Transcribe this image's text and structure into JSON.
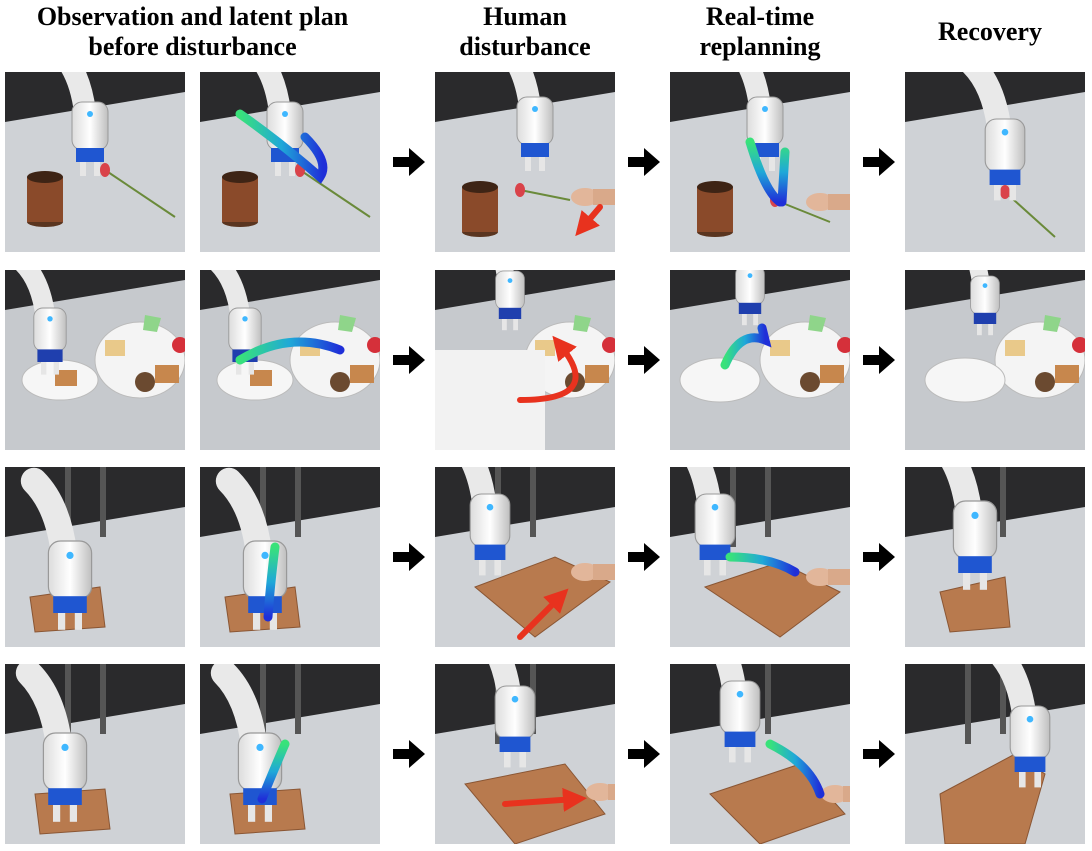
{
  "headers": {
    "col1": [
      "Observation and latent plan",
      "before disturbance"
    ],
    "col3": [
      "Human",
      "disturbance"
    ],
    "col4": [
      "Real-time",
      "replanning"
    ],
    "col5": [
      "Recovery"
    ]
  },
  "colors": {
    "plan_start": "#39e27a",
    "plan_end": "#1f2fd8",
    "disturbance_arrow": "#e8321e",
    "table": "#c9ccd0",
    "backdrop": "#2a2a2c"
  },
  "rows": [
    {
      "scene": "tulip-and-cup"
    },
    {
      "scene": "plates-and-food"
    },
    {
      "scene": "towel-fold-a"
    },
    {
      "scene": "towel-fold-b"
    }
  ]
}
